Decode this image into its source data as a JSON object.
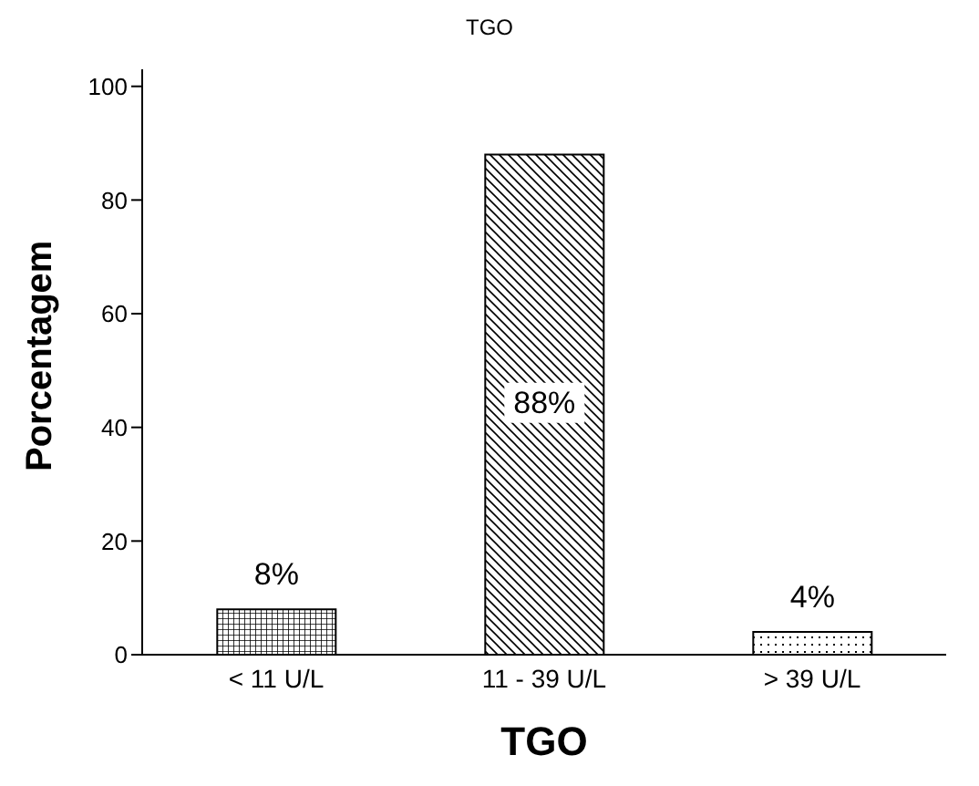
{
  "chart_data": {
    "type": "bar",
    "title": "TGO",
    "xlabel": "TGO",
    "ylabel": "Porcentagem",
    "categories": [
      "< 11 U/L",
      "11 - 39 U/L",
      "> 39 U/L"
    ],
    "values": [
      8,
      88,
      4
    ],
    "value_labels": [
      "8%",
      "88%",
      "4%"
    ],
    "ylim": [
      0,
      103
    ],
    "yticks": [
      0,
      20,
      40,
      60,
      80,
      100
    ],
    "grid": false
  }
}
